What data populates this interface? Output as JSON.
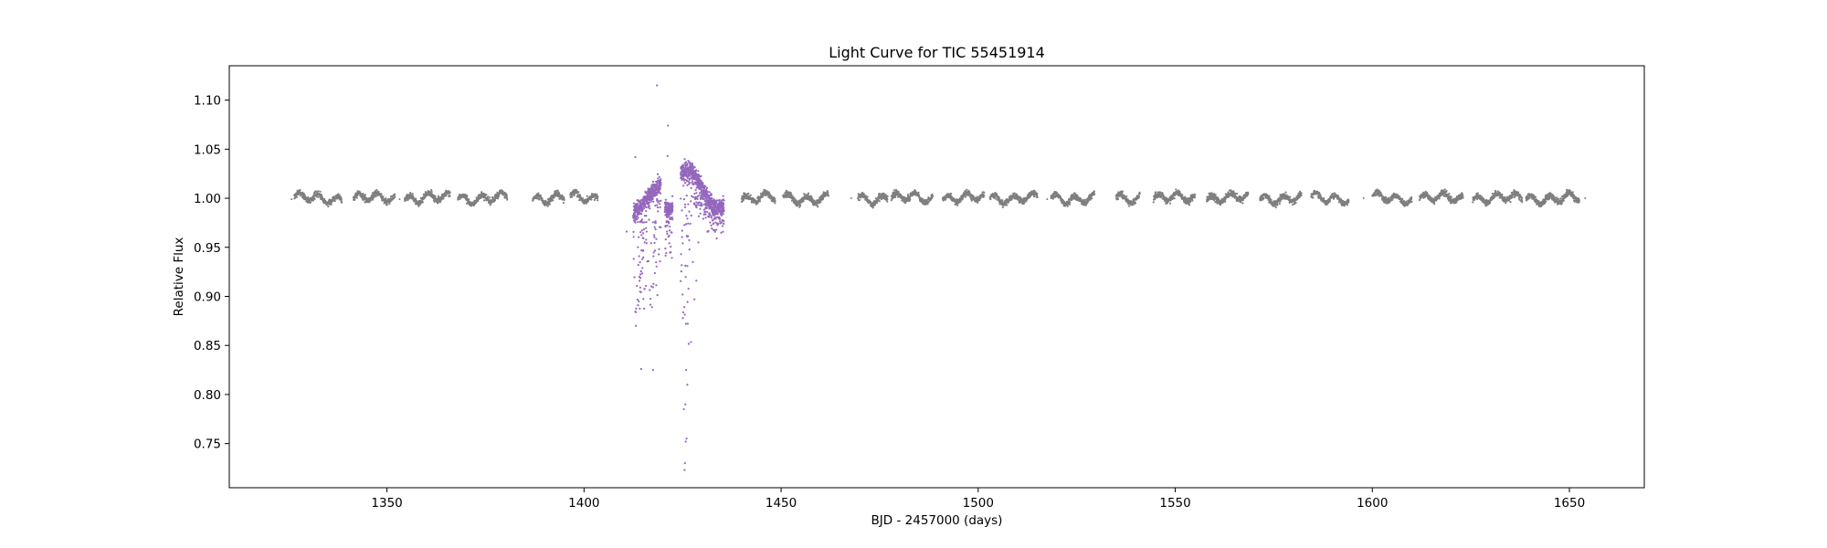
{
  "chart_data": {
    "type": "scatter",
    "title": "Light Curve for TIC 55451914",
    "xlabel": "BJD - 2457000 (days)",
    "ylabel": "Relative Flux",
    "xlim": [
      1310,
      1669
    ],
    "ylim": [
      0.705,
      1.135
    ],
    "xticks": [
      1350,
      1400,
      1450,
      1500,
      1550,
      1600,
      1650
    ],
    "yticks": [
      0.75,
      0.8,
      0.85,
      0.9,
      0.95,
      1.0,
      1.05,
      1.1
    ],
    "xtick_labels": [
      "1350",
      "1400",
      "1450",
      "1500",
      "1550",
      "1600",
      "1650"
    ],
    "ytick_labels": [
      "0.75",
      "0.80",
      "0.85",
      "0.90",
      "0.95",
      "1.00",
      "1.05",
      "1.10"
    ],
    "grid": false,
    "legend": "none",
    "series": [
      {
        "color": "#7f7f7f",
        "segments": [
          [
            1326.5,
            1338.5
          ],
          [
            1341.5,
            1352.0
          ],
          [
            1354.5,
            1366.0
          ],
          [
            1368.0,
            1380.5
          ],
          [
            1387.0,
            1395.0
          ],
          [
            1396.5,
            1403.5
          ],
          [
            1440.0,
            1448.5
          ],
          [
            1450.5,
            1462.0
          ],
          [
            1469.5,
            1477.0
          ],
          [
            1478.0,
            1488.5
          ],
          [
            1491.0,
            1501.5
          ],
          [
            1503.0,
            1515.0
          ],
          [
            1518.5,
            1529.5
          ],
          [
            1535.0,
            1541.0
          ],
          [
            1544.5,
            1555.0
          ],
          [
            1558.0,
            1568.5
          ],
          [
            1571.5,
            1582.0
          ],
          [
            1584.5,
            1594.0
          ],
          [
            1600.0,
            1610.0
          ],
          [
            1612.0,
            1623.0
          ],
          [
            1625.5,
            1638.0
          ],
          [
            1639.0,
            1652.5
          ]
        ],
        "baseline": 1.0,
        "scatter": 0.005,
        "outliers": [
          [
            1325.8,
            0.999
          ],
          [
            1353.2,
            0.999
          ],
          [
            1467.8,
            1.0
          ],
          [
            1517.5,
            0.999
          ],
          [
            1597.8,
            1.0
          ],
          [
            1654.0,
            1.0
          ]
        ]
      },
      {
        "color": "#9467bd",
        "segments": [
          [
            1412.5,
            1419.5
          ],
          [
            1420.5,
            1422.5
          ],
          [
            1424.5,
            1435.5
          ]
        ],
        "baseline": 1.0,
        "scatter": 0.015,
        "outliers": [
          [
            1418.5,
            1.115
          ],
          [
            1421.3,
            1.074
          ],
          [
            1413.0,
            1.042
          ],
          [
            1421.2,
            1.043
          ],
          [
            1410.8,
            0.966
          ],
          [
            1422.0,
            0.945
          ],
          [
            1414.5,
            0.826
          ],
          [
            1417.5,
            0.825
          ],
          [
            1425.5,
            0.723
          ],
          [
            1425.6,
            0.73
          ],
          [
            1425.8,
            0.752
          ],
          [
            1426.0,
            0.755
          ],
          [
            1425.3,
            0.785
          ],
          [
            1425.7,
            0.79
          ],
          [
            1426.2,
            0.81
          ],
          [
            1425.9,
            0.825
          ],
          [
            1428.0,
            0.897
          ],
          [
            1428.5,
            0.916
          ],
          [
            1427.6,
            0.935
          ],
          [
            1429.0,
            0.955
          ]
        ]
      }
    ]
  }
}
